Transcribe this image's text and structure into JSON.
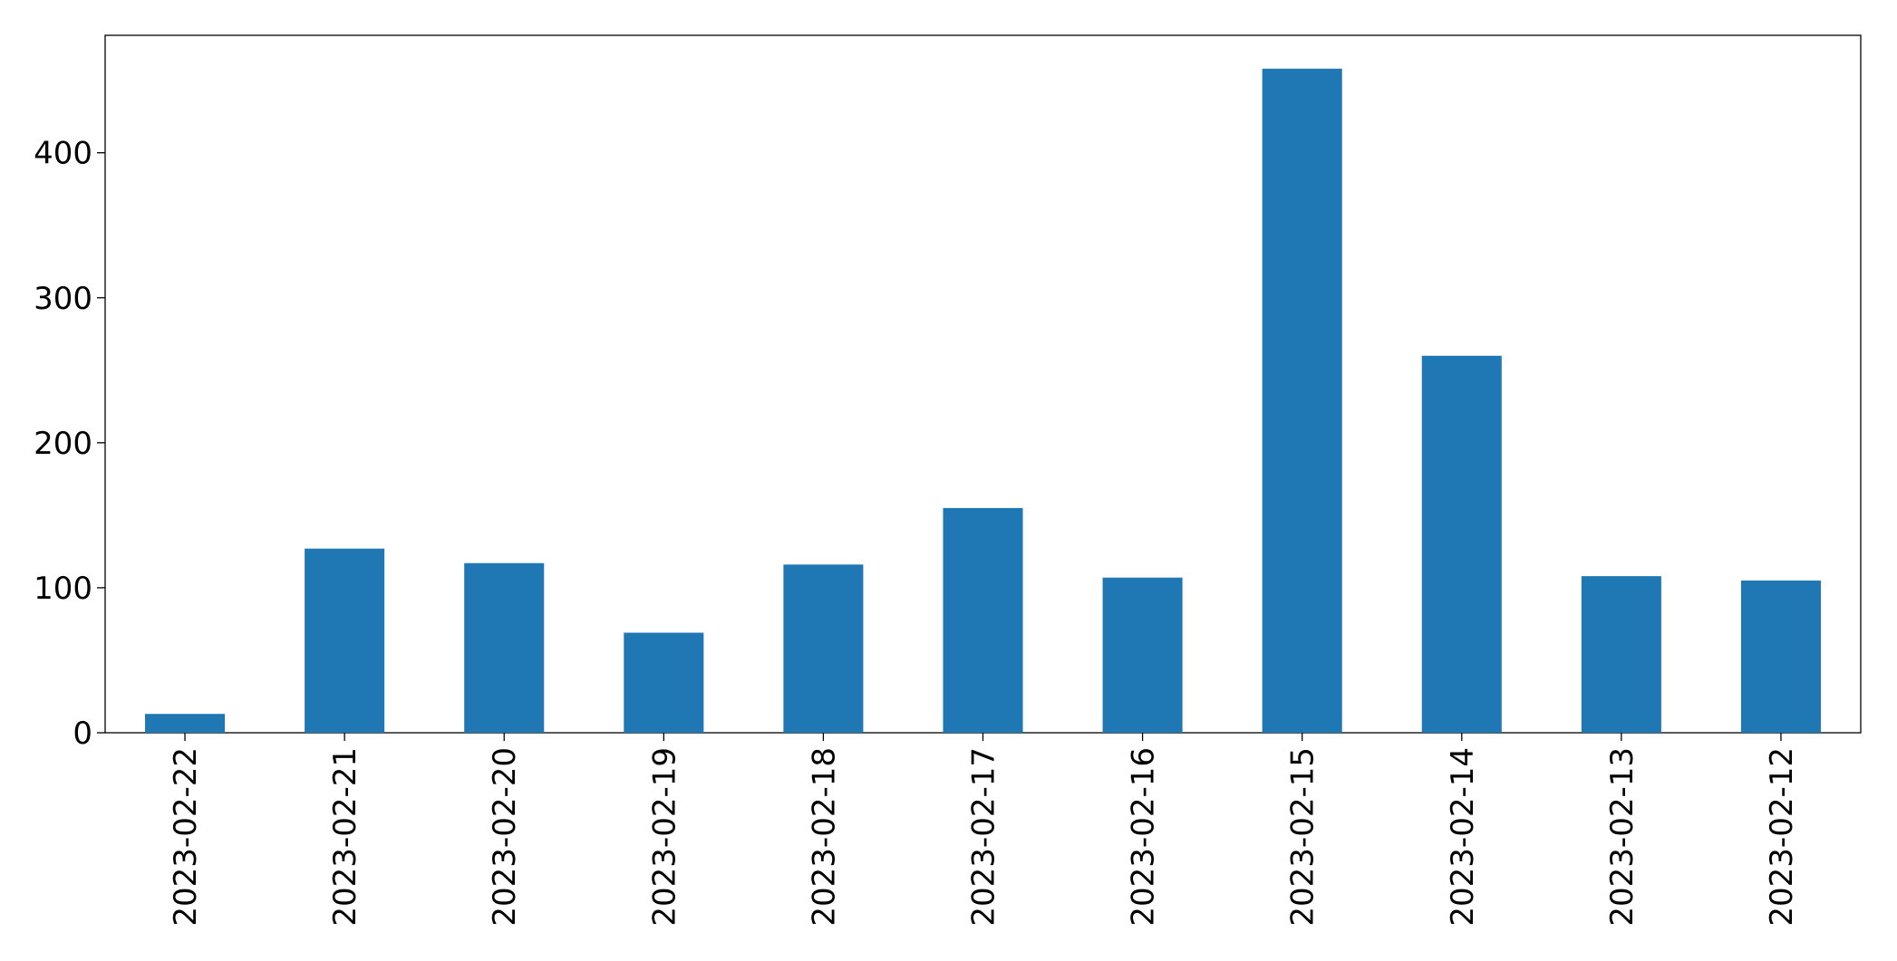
{
  "chart_data": {
    "type": "bar",
    "categories": [
      "2023-02-22",
      "2023-02-21",
      "2023-02-20",
      "2023-02-19",
      "2023-02-18",
      "2023-02-17",
      "2023-02-16",
      "2023-02-15",
      "2023-02-14",
      "2023-02-13",
      "2023-02-12"
    ],
    "values": [
      13,
      127,
      117,
      69,
      116,
      155,
      107,
      458,
      260,
      108,
      105
    ],
    "color": "#1f77b4",
    "ylim": [
      0,
      481
    ],
    "yticks": [
      0,
      100,
      200,
      300,
      400
    ],
    "grid": false
  }
}
